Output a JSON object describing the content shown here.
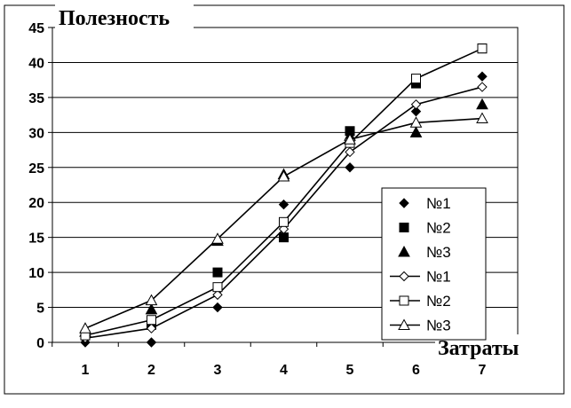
{
  "chart_data": {
    "type": "scatter",
    "title": "",
    "ylabel": "Полезность",
    "xlabel": "Затраты",
    "x": [
      1,
      2,
      3,
      4,
      5,
      6,
      7
    ],
    "xlim": [
      0.5,
      7.5
    ],
    "ylim": [
      0,
      45
    ],
    "yticks": [
      0,
      5,
      10,
      15,
      20,
      25,
      30,
      35,
      40,
      45
    ],
    "grid": "horizontal",
    "legend_position": "right",
    "series": [
      {
        "name": "№1",
        "kind": "points",
        "marker": "diamond-filled",
        "values": [
          0,
          0,
          5,
          19.7,
          25,
          33,
          38
        ]
      },
      {
        "name": "№2",
        "kind": "points",
        "marker": "square-filled",
        "values": [
          1,
          2.5,
          10,
          15,
          30.2,
          37,
          42
        ]
      },
      {
        "name": "№3",
        "kind": "points",
        "marker": "triangle-filled",
        "values": [
          1.5,
          4.7,
          14.5,
          24,
          29.5,
          30,
          34
        ]
      },
      {
        "name": "№1",
        "kind": "line",
        "marker": "diamond-open",
        "values": [
          0.6,
          2,
          6.8,
          16.2,
          27.2,
          34,
          36.5
        ]
      },
      {
        "name": "№2",
        "kind": "line",
        "marker": "square-open",
        "values": [
          1,
          3.2,
          7.9,
          17.2,
          28.5,
          37.7,
          42
        ]
      },
      {
        "name": "№3",
        "kind": "line",
        "marker": "triangle-open",
        "values": [
          2,
          6,
          14.8,
          23.7,
          29,
          31.4,
          32
        ]
      }
    ]
  }
}
